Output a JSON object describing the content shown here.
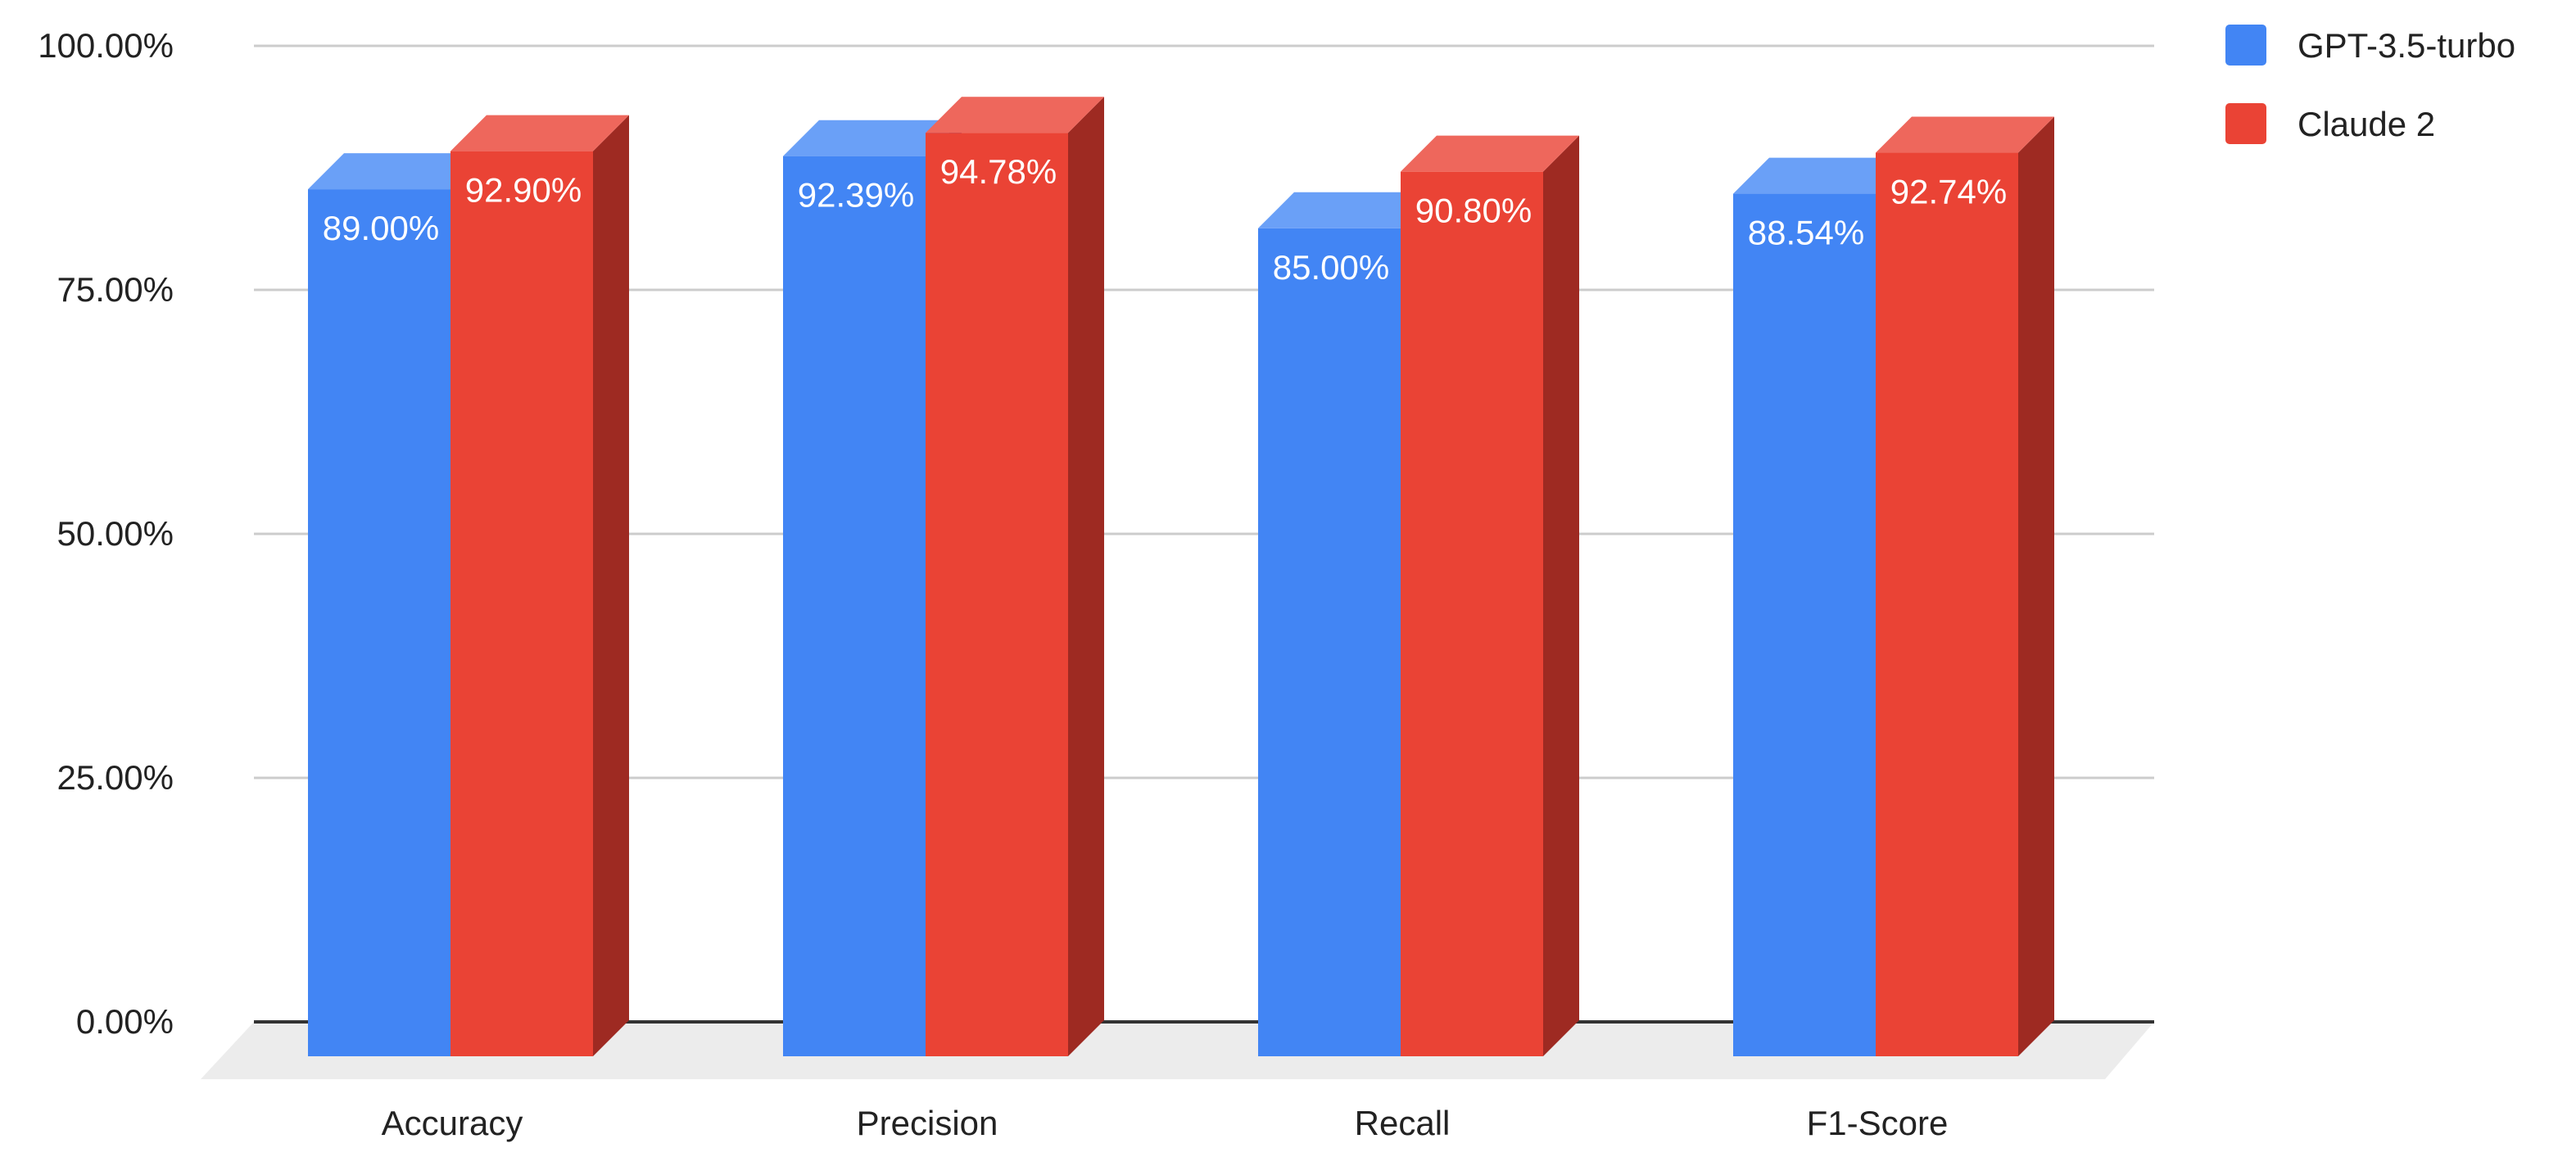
{
  "chart_data": {
    "type": "bar",
    "title": "",
    "xlabel": "",
    "ylabel": "",
    "three_d": true,
    "categories": [
      "Accuracy",
      "Precision",
      "Recall",
      "F1-Score"
    ],
    "series": [
      {
        "name": "GPT-3.5-turbo",
        "values": [
          89.0,
          92.39,
          85.0,
          88.54
        ],
        "labels": [
          "89.00%",
          "92.39%",
          "85.00%",
          "88.54%"
        ],
        "color": "#4285f4",
        "top_color": "#6aa0f7",
        "side_color": "#2f62b9"
      },
      {
        "name": "Claude 2",
        "values": [
          92.9,
          94.78,
          90.8,
          92.74
        ],
        "labels": [
          "92.90%",
          "94.78%",
          "90.80%",
          "92.74%"
        ],
        "color": "#ea4335",
        "top_color": "#ee675c",
        "side_color": "#9e2a22"
      }
    ],
    "yticks": [
      "0.00%",
      "25.00%",
      "50.00%",
      "75.00%",
      "100.00%"
    ],
    "ytick_values": [
      0,
      25,
      50,
      75,
      100
    ],
    "ylim": [
      0,
      100
    ],
    "grid": true,
    "legend_position": "top-right",
    "colors": {
      "gridline": "#cccccc",
      "baseline": "#333333",
      "floor": "#ececec"
    }
  }
}
